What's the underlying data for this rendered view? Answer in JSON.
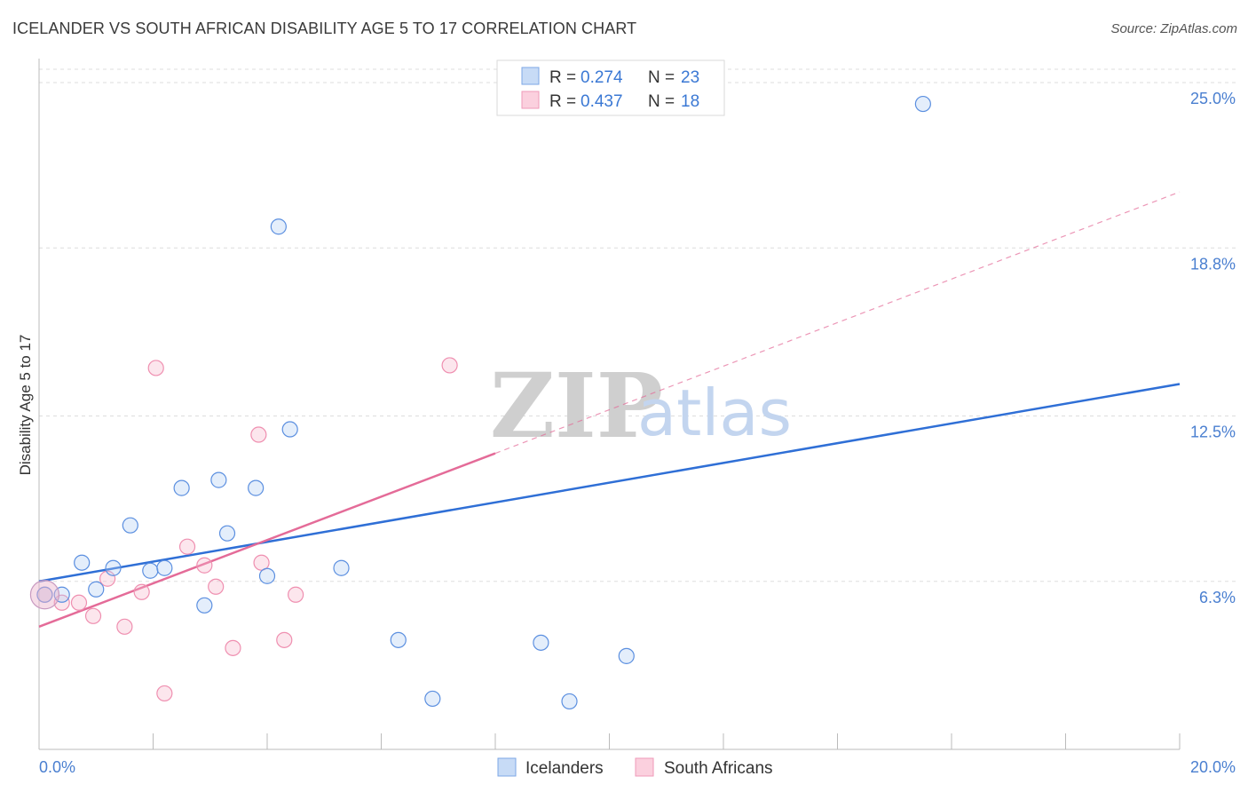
{
  "title": "ICELANDER VS SOUTH AFRICAN DISABILITY AGE 5 TO 17 CORRELATION CHART",
  "source": "Source: ZipAtlas.com",
  "watermark": {
    "zip": "ZIP",
    "atlas": "atlas"
  },
  "legend": {
    "rows": [
      {
        "r_label": "R = ",
        "r_value": "0.274",
        "n_label": "N = ",
        "n_value": "23"
      },
      {
        "r_label": "R = ",
        "r_value": "0.437",
        "n_label": "N = ",
        "n_value": "18"
      }
    ]
  },
  "chart_data": {
    "type": "scatter",
    "title": "ICELANDER VS SOUTH AFRICAN DISABILITY AGE 5 TO 17 CORRELATION CHART",
    "xlabel": "",
    "ylabel": "Disability Age 5 to 17",
    "xlim": [
      0,
      20
    ],
    "ylim": [
      0,
      25.5
    ],
    "x_tick_labels": [
      "0.0%",
      "20.0%"
    ],
    "y_ticks": [
      6.3,
      12.5,
      18.8,
      25.0
    ],
    "y_tick_labels": [
      "6.3%",
      "12.5%",
      "18.8%",
      "25.0%"
    ],
    "colors": {
      "Icelanders": "#5b8fe0",
      "South Africans": "#ef8fb0",
      "line_blue": "#2f6fd6",
      "line_pink": "#e46b98"
    },
    "series": [
      {
        "name": "Icelanders",
        "points": [
          [
            0.1,
            5.8
          ],
          [
            0.4,
            5.8
          ],
          [
            0.75,
            7.0
          ],
          [
            1.0,
            6.0
          ],
          [
            1.3,
            6.8
          ],
          [
            1.6,
            8.4
          ],
          [
            1.95,
            6.7
          ],
          [
            2.2,
            6.8
          ],
          [
            2.5,
            9.8
          ],
          [
            2.9,
            5.4
          ],
          [
            3.15,
            10.1
          ],
          [
            3.3,
            8.1
          ],
          [
            3.8,
            9.8
          ],
          [
            4.2,
            19.6
          ],
          [
            4.0,
            6.5
          ],
          [
            4.4,
            12.0
          ],
          [
            5.3,
            6.8
          ],
          [
            6.3,
            4.1
          ],
          [
            6.9,
            1.9
          ],
          [
            8.8,
            4.0
          ],
          [
            9.3,
            1.8
          ],
          [
            10.3,
            3.5
          ],
          [
            15.5,
            24.2
          ]
        ],
        "trend": {
          "x": [
            0,
            20
          ],
          "y": [
            6.3,
            13.7
          ]
        }
      },
      {
        "name": "South Africans",
        "points": [
          [
            0.1,
            5.8
          ],
          [
            0.4,
            5.5
          ],
          [
            0.7,
            5.5
          ],
          [
            0.95,
            5.0
          ],
          [
            1.2,
            6.4
          ],
          [
            1.5,
            4.6
          ],
          [
            1.8,
            5.9
          ],
          [
            2.05,
            14.3
          ],
          [
            2.6,
            7.6
          ],
          [
            2.9,
            6.9
          ],
          [
            3.1,
            6.1
          ],
          [
            3.4,
            3.8
          ],
          [
            2.2,
            2.1
          ],
          [
            3.85,
            11.8
          ],
          [
            3.9,
            7.0
          ],
          [
            4.3,
            4.1
          ],
          [
            4.5,
            5.8
          ],
          [
            7.2,
            14.4
          ]
        ],
        "trend": {
          "x": [
            0,
            8
          ],
          "y": [
            4.6,
            11.1
          ]
        },
        "trend_extension": {
          "x": [
            8,
            20
          ],
          "y": [
            11.1,
            20.9
          ]
        }
      }
    ]
  },
  "bottom_legend": {
    "items": [
      {
        "label": "Icelanders"
      },
      {
        "label": "South Africans"
      }
    ]
  }
}
